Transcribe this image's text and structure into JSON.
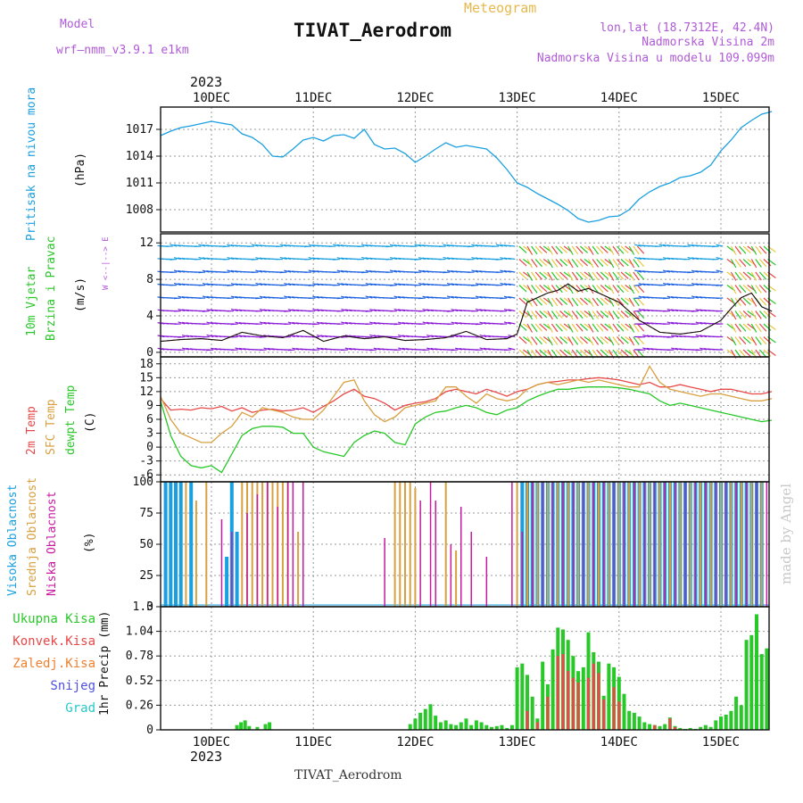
{
  "header": {
    "model_label": "Model",
    "model_name": "wrf—nmm_v3.9.1  e1km",
    "title": "TIVAT_Aerodrom",
    "meteogram": "Meteogram",
    "lonlat": "lon,lat (18.7312E, 42.4N)",
    "elev": "Nadmorska Visina 2m",
    "elev_model": "Nadmorska Visina u modelu 109.099m",
    "year_top": "2023",
    "year_bottom": "2023",
    "footer": "TIVAT_Aerodrom",
    "credit": "made by Angel"
  },
  "x_axis": {
    "labels": [
      "10DEC",
      "11DEC",
      "12DEC",
      "13DEC",
      "14DEC",
      "15DEC"
    ]
  },
  "panels": {
    "pressure": {
      "label1": "Pritisak na nivou mora",
      "unit": "(hPa)",
      "ticks": [
        "1008",
        "1011",
        "1014",
        "1017"
      ]
    },
    "wind": {
      "label1": "10m Vjetar",
      "label2": "Brzina i Pravac",
      "unit": "(m/s)",
      "compass": "W <--|--> E",
      "ticks": [
        "0",
        "4",
        "8",
        "12"
      ]
    },
    "temp": {
      "label1": "2m Temp",
      "label2": "SFC Temp",
      "label3": "dewpt Temp",
      "unit": "(C)",
      "ticks": [
        "-6",
        "-3",
        "0",
        "3",
        "6",
        "9",
        "12",
        "15",
        "18"
      ]
    },
    "cloud": {
      "label1": "Visoka Oblacnost",
      "label2": "Srednja Oblacnost",
      "label3": "Niska Oblacnost",
      "unit": "(%)",
      "ticks": [
        "0",
        "25",
        "50",
        "75",
        "100"
      ]
    },
    "precip": {
      "unit": "1hr Precip (mm)",
      "ticks": [
        "0",
        "0.26",
        "0.52",
        "0.78",
        "1.04",
        "1.3"
      ],
      "legend": [
        "Ukupna Kisa",
        "Konvek.Kisa",
        "Zaledj.Kisa",
        "Snijeg",
        "Grad"
      ]
    }
  },
  "colors": {
    "pressure": "#1aa0e0",
    "t2m": "#e84848",
    "tsfc": "#d8a040",
    "dewpt": "#28c828",
    "cloud_high": "#1aa0e0",
    "cloud_mid": "#d8a040",
    "cloud_low": "#c81aa0",
    "precip_total": "#28c828",
    "precip_conv": "#e84848",
    "leg_total": "#28c828",
    "leg_conv": "#e84848",
    "leg_frz": "#f08030",
    "leg_snow": "#5050e0",
    "leg_hail": "#28c8c8"
  },
  "chart_data": [
    {
      "type": "line",
      "name": "pressure",
      "ylabel": "Pritisak na nivou mora (hPa)",
      "ylim": [
        1005.5,
        1019.5
      ],
      "x_unit": "days since 10DEC 00Z",
      "x": [
        -0.5,
        -0.4,
        -0.3,
        -0.2,
        0,
        0.2,
        0.3,
        0.4,
        0.5,
        0.6,
        0.7,
        0.8,
        0.9,
        1.0,
        1.1,
        1.2,
        1.3,
        1.4,
        1.5,
        1.6,
        1.7,
        1.8,
        1.9,
        2.0,
        2.1,
        2.2,
        2.3,
        2.4,
        2.5,
        2.6,
        2.7,
        2.8,
        2.9,
        3.0,
        3.1,
        3.2,
        3.3,
        3.4,
        3.5,
        3.6,
        3.7,
        3.8,
        3.9,
        4.0,
        4.1,
        4.2,
        4.3,
        4.4,
        4.5,
        4.6,
        4.7,
        4.8,
        4.9,
        5.0,
        5.1,
        5.2,
        5.3,
        5.4,
        5.5
      ],
      "values": [
        1016.3,
        1016.8,
        1017.2,
        1017.4,
        1017.9,
        1017.5,
        1016.5,
        1016.1,
        1015.3,
        1014.0,
        1013.9,
        1014.8,
        1015.8,
        1016.1,
        1015.7,
        1016.3,
        1016.4,
        1016.0,
        1017.0,
        1015.3,
        1014.8,
        1014.9,
        1014.3,
        1013.3,
        1014.0,
        1014.8,
        1015.5,
        1015.0,
        1015.2,
        1015.0,
        1014.8,
        1013.8,
        1012.5,
        1011.0,
        1010.5,
        1009.8,
        1009.2,
        1008.6,
        1007.9,
        1007.0,
        1006.6,
        1006.8,
        1007.2,
        1007.3,
        1008.0,
        1009.2,
        1010.0,
        1010.6,
        1011.0,
        1011.6,
        1011.8,
        1012.2,
        1013.0,
        1014.6,
        1015.8,
        1017.2,
        1018.0,
        1018.7,
        1019.0
      ]
    },
    {
      "type": "line",
      "name": "wind",
      "ylabel": "10m Vjetar Brzina i Pravac (m/s)",
      "ylim": [
        -0.5,
        13
      ],
      "x_unit": "days since 10DEC 00Z",
      "x": [
        -0.5,
        -0.3,
        -0.1,
        0.1,
        0.3,
        0.5,
        0.7,
        0.9,
        1.1,
        1.3,
        1.5,
        1.7,
        1.9,
        2.1,
        2.3,
        2.5,
        2.7,
        2.9,
        3.0,
        3.1,
        3.2,
        3.3,
        3.4,
        3.5,
        3.6,
        3.7,
        3.8,
        3.9,
        4.0,
        4.2,
        4.4,
        4.6,
        4.8,
        5.0,
        5.1,
        5.2,
        5.3,
        5.4,
        5.5
      ],
      "values": [
        1.2,
        1.4,
        1.5,
        1.3,
        2.2,
        1.8,
        1.6,
        2.4,
        1.2,
        1.8,
        1.5,
        1.7,
        1.3,
        1.4,
        1.6,
        2.3,
        1.4,
        1.5,
        2.0,
        5.5,
        6.0,
        6.5,
        6.8,
        7.5,
        6.7,
        7.0,
        6.5,
        6.0,
        5.5,
        3.5,
        2.2,
        2.0,
        2.3,
        3.5,
        4.8,
        6.0,
        6.5,
        5.0,
        4.5
      ]
    },
    {
      "type": "line",
      "name": "temperature",
      "ylabel": "Temp (C)",
      "ylim": [
        -7.5,
        19.5
      ],
      "x_unit": "days since 10DEC 00Z",
      "x": [
        -0.5,
        -0.4,
        -0.3,
        -0.2,
        -0.1,
        0,
        0.1,
        0.2,
        0.3,
        0.4,
        0.5,
        0.6,
        0.7,
        0.8,
        0.9,
        1.0,
        1.1,
        1.2,
        1.3,
        1.4,
        1.5,
        1.6,
        1.7,
        1.8,
        1.9,
        2.0,
        2.1,
        2.2,
        2.3,
        2.4,
        2.5,
        2.6,
        2.7,
        2.8,
        2.9,
        3.0,
        3.1,
        3.2,
        3.3,
        3.4,
        3.5,
        3.6,
        3.7,
        3.8,
        3.9,
        4.0,
        4.1,
        4.2,
        4.3,
        4.4,
        4.5,
        4.6,
        4.7,
        4.8,
        4.9,
        5.0,
        5.1,
        5.2,
        5.3,
        5.4,
        5.5
      ],
      "series": [
        {
          "name": "2m Temp",
          "values": [
            10.5,
            8.0,
            8.2,
            8.0,
            8.5,
            8.3,
            8.8,
            7.8,
            8.5,
            7.5,
            8.0,
            8.2,
            7.8,
            8.0,
            8.5,
            7.5,
            8.8,
            10.0,
            11.5,
            12.5,
            11.0,
            10.5,
            9.5,
            8.0,
            9.0,
            9.5,
            9.8,
            10.5,
            12.0,
            12.5,
            12.0,
            11.5,
            12.5,
            11.8,
            11.0,
            12.0,
            12.5,
            13.5,
            14.0,
            14.2,
            14.5,
            14.5,
            14.8,
            15.0,
            14.8,
            14.5,
            14.0,
            13.5,
            14.0,
            13.0,
            13.0,
            13.5,
            13.0,
            12.5,
            12.0,
            12.5,
            12.5,
            12.0,
            11.5,
            11.5,
            12.0
          ]
        },
        {
          "name": "SFC Temp",
          "values": [
            11.0,
            6.0,
            3.0,
            2.0,
            1.0,
            1.0,
            3.0,
            4.5,
            7.5,
            6.5,
            8.5,
            8.0,
            7.5,
            6.5,
            6.0,
            6.0,
            8.0,
            11.0,
            14.0,
            14.5,
            10.0,
            7.0,
            5.5,
            6.5,
            8.5,
            9.0,
            9.5,
            10.0,
            13.0,
            13.0,
            11.0,
            9.5,
            11.5,
            10.5,
            10.0,
            10.5,
            12.5,
            13.5,
            14.0,
            13.5,
            14.0,
            14.5,
            14.0,
            14.5,
            14.0,
            13.5,
            13.0,
            13.0,
            17.5,
            14.0,
            12.5,
            12.0,
            11.5,
            11.0,
            11.5,
            11.5,
            11.0,
            10.5,
            10.0,
            10.0,
            10.5
          ]
        },
        {
          "name": "dewpt Temp",
          "values": [
            10.0,
            2.5,
            -2.0,
            -4.0,
            -4.5,
            -4.0,
            -5.5,
            -1.5,
            2.5,
            4.0,
            4.5,
            4.5,
            4.3,
            3.0,
            3.0,
            0.0,
            -1.0,
            -1.5,
            -2.0,
            1.0,
            2.5,
            3.5,
            3.0,
            1.0,
            0.5,
            5.0,
            6.5,
            7.5,
            7.8,
            8.5,
            9.0,
            8.5,
            7.5,
            7.0,
            8.0,
            8.5,
            10.0,
            11.0,
            11.8,
            12.5,
            12.5,
            12.8,
            13.0,
            13.0,
            13.0,
            12.8,
            12.5,
            12.0,
            11.5,
            10.0,
            9.0,
            9.5,
            9.0,
            8.5,
            8.0,
            7.5,
            7.0,
            6.5,
            6.0,
            5.5,
            5.8
          ]
        }
      ]
    },
    {
      "type": "bar",
      "name": "cloud",
      "ylabel": "Oblacnost (%)",
      "ylim": [
        0,
        100
      ],
      "x_unit": "days since 10DEC 00Z",
      "series": [
        {
          "name": "Visoka Oblacnost",
          "x": [
            -0.45,
            -0.4,
            -0.35,
            -0.3,
            -0.2,
            0.15,
            0.2,
            0.25,
            3.05,
            3.1,
            3.15,
            3.2,
            3.25,
            3.3,
            3.35,
            3.4,
            3.45,
            3.5,
            3.55,
            3.6,
            3.65,
            3.7,
            3.75,
            3.8,
            3.85,
            3.9,
            3.95,
            4.0,
            4.05,
            4.1,
            4.15,
            4.2,
            4.25,
            4.3,
            4.35,
            4.4,
            4.45,
            4.5,
            4.55,
            4.6,
            4.65,
            4.7,
            4.75,
            4.8,
            4.85,
            4.9,
            4.95,
            5.0,
            5.05,
            5.1,
            5.15,
            5.2,
            5.25,
            5.3,
            5.35,
            5.4
          ],
          "values": [
            100,
            100,
            100,
            100,
            100,
            40,
            100,
            60,
            100,
            100,
            100,
            100,
            100,
            100,
            100,
            100,
            100,
            100,
            100,
            100,
            100,
            100,
            100,
            100,
            100,
            100,
            100,
            100,
            100,
            100,
            100,
            100,
            100,
            100,
            100,
            100,
            100,
            100,
            100,
            100,
            100,
            100,
            100,
            100,
            100,
            100,
            100,
            100,
            100,
            100,
            100,
            100,
            100,
            100,
            100,
            100
          ]
        },
        {
          "name": "Srednja Oblacnost",
          "x": [
            -0.25,
            -0.15,
            -0.05,
            0.3,
            0.35,
            0.4,
            0.45,
            0.5,
            0.55,
            0.6,
            0.65,
            0.7,
            0.75,
            0.85,
            1.8,
            1.85,
            1.9,
            1.95,
            2.0,
            2.3,
            2.4,
            3.0,
            3.1,
            3.2,
            3.3,
            3.4,
            3.5,
            3.6,
            3.7,
            3.8,
            3.9,
            4.0,
            4.1,
            4.2,
            4.3,
            4.4,
            4.5,
            4.6,
            4.7,
            4.8,
            4.9,
            5.0,
            5.1,
            5.2,
            5.3,
            5.4,
            5.5
          ],
          "values": [
            100,
            85,
            100,
            100,
            100,
            100,
            100,
            100,
            100,
            100,
            100,
            100,
            100,
            60,
            100,
            100,
            100,
            100,
            95,
            100,
            45,
            100,
            100,
            100,
            100,
            100,
            100,
            100,
            100,
            100,
            100,
            100,
            100,
            100,
            100,
            100,
            100,
            100,
            100,
            100,
            100,
            100,
            100,
            100,
            100,
            100,
            100
          ]
        },
        {
          "name": "Niska Oblacnost",
          "x": [
            0.1,
            0.2,
            0.35,
            0.45,
            0.55,
            0.65,
            0.75,
            0.8,
            0.9,
            1.7,
            2.05,
            2.15,
            2.2,
            2.35,
            2.45,
            2.55,
            2.7,
            2.95,
            3.05,
            3.15,
            3.25,
            3.35,
            3.45,
            3.55,
            3.65,
            3.75,
            3.85,
            3.95,
            4.05,
            4.15,
            4.25,
            4.35,
            4.45,
            4.55,
            4.65,
            4.75,
            4.85,
            4.95,
            5.05,
            5.15,
            5.25,
            5.35,
            5.45
          ],
          "values": [
            70,
            60,
            75,
            90,
            100,
            80,
            100,
            100,
            100,
            55,
            85,
            100,
            85,
            50,
            80,
            60,
            40,
            100,
            60,
            100,
            100,
            100,
            100,
            100,
            100,
            100,
            100,
            100,
            100,
            100,
            100,
            100,
            100,
            100,
            100,
            100,
            100,
            100,
            100,
            100,
            100,
            100,
            100
          ]
        }
      ]
    },
    {
      "type": "bar",
      "name": "precip",
      "ylabel": "1hr Precip (mm)",
      "ylim": [
        0,
        1.3
      ],
      "x_unit": "days since 10DEC 00Z",
      "series": [
        {
          "name": "Ukupna Kisa",
          "x": [
            0.25,
            0.29,
            0.33,
            0.37,
            0.45,
            0.53,
            0.57,
            1.95,
            2.0,
            2.05,
            2.1,
            2.15,
            2.2,
            2.25,
            2.3,
            2.35,
            2.4,
            2.45,
            2.5,
            2.55,
            2.6,
            2.65,
            2.7,
            2.75,
            2.8,
            2.85,
            2.9,
            2.95,
            3.0,
            3.05,
            3.1,
            3.15,
            3.2,
            3.25,
            3.3,
            3.35,
            3.4,
            3.45,
            3.5,
            3.55,
            3.6,
            3.65,
            3.7,
            3.75,
            3.8,
            3.85,
            3.9,
            3.95,
            4.0,
            4.05,
            4.1,
            4.15,
            4.2,
            4.25,
            4.3,
            4.35,
            4.4,
            4.45,
            4.5,
            4.55,
            4.6,
            4.65,
            4.7,
            4.75,
            4.8,
            4.85,
            4.9,
            4.95,
            5.0,
            5.05,
            5.1,
            5.15,
            5.2,
            5.25,
            5.3,
            5.35,
            5.4,
            5.45
          ],
          "values": [
            0.05,
            0.08,
            0.1,
            0.04,
            0.03,
            0.06,
            0.08,
            0.06,
            0.12,
            0.18,
            0.22,
            0.27,
            0.15,
            0.08,
            0.1,
            0.06,
            0.05,
            0.08,
            0.12,
            0.05,
            0.1,
            0.08,
            0.05,
            0.03,
            0.04,
            0.05,
            0.02,
            0.05,
            0.66,
            0.7,
            0.58,
            0.35,
            0.12,
            0.72,
            0.48,
            0.85,
            1.08,
            1.06,
            0.95,
            0.78,
            0.62,
            0.66,
            1.03,
            0.82,
            0.72,
            0.36,
            0.7,
            0.66,
            0.56,
            0.38,
            0.2,
            0.18,
            0.14,
            0.08,
            0.06,
            0.05,
            0.04,
            0.06,
            0.13,
            0.04,
            0.02,
            0.01,
            0.02,
            0.01,
            0.03,
            0.05,
            0.03,
            0.1,
            0.14,
            0.16,
            0.2,
            0.35,
            0.26,
            0.95,
            1.0,
            1.22,
            0.8,
            0.86
          ]
        },
        {
          "name": "Konvek.Kisa",
          "x": [
            3.1,
            3.2,
            3.3,
            3.4,
            3.45,
            3.5,
            3.55,
            3.6,
            3.7,
            3.75,
            3.8,
            3.85,
            3.95,
            4.0,
            4.35,
            4.5,
            4.55
          ],
          "values": [
            0.2,
            0.08,
            0.35,
            0.78,
            0.8,
            0.62,
            0.55,
            0.5,
            0.55,
            0.7,
            0.6,
            0.32,
            0.45,
            0.3,
            0.05,
            0.12,
            0.03
          ]
        }
      ]
    }
  ]
}
